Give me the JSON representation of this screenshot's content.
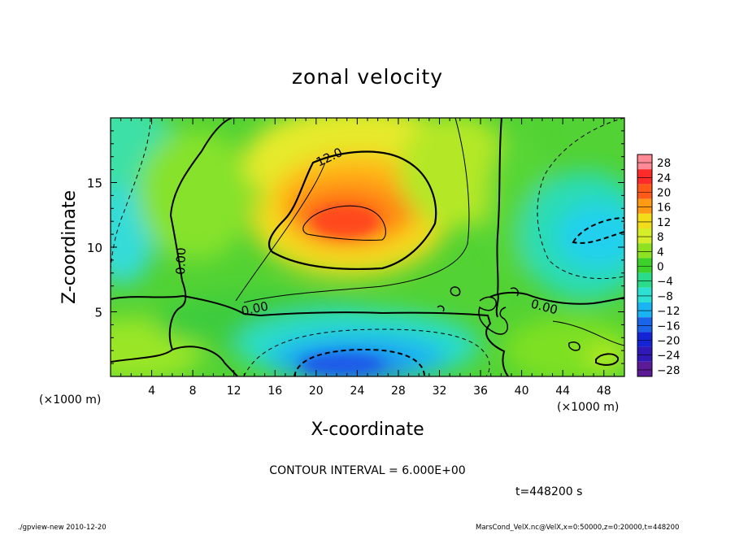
{
  "chart_data": {
    "type": "heatmap",
    "title": "zonal velocity",
    "xlabel": "X-coordinate",
    "ylabel": "Z-coordinate",
    "x_unit": "(×1000 m)",
    "y_unit": "(×1000 m)",
    "xlim": [
      0,
      50
    ],
    "ylim": [
      0,
      20
    ],
    "x_ticks": [
      4,
      8,
      12,
      16,
      20,
      24,
      28,
      32,
      36,
      40,
      44,
      48
    ],
    "y_ticks": [
      5,
      10,
      15
    ],
    "colorbar": {
      "levels": [
        28,
        24,
        20,
        16,
        12,
        8,
        4,
        0,
        -4,
        -8,
        -12,
        -16,
        -20,
        -24,
        -28
      ],
      "labels": [
        "28",
        "24",
        "20",
        "16",
        "12",
        "8",
        "4",
        "0",
        "−4",
        "−8",
        "−12",
        "−16",
        "−20",
        "−24",
        "−28"
      ],
      "colors": [
        "#ff8a96",
        "#ff2a2a",
        "#ff5a1a",
        "#ff9a14",
        "#f3dc1a",
        "#d6ee2a",
        "#8ee222",
        "#3cd22a",
        "#2adc8a",
        "#2ee0d2",
        "#1ab4f2",
        "#1a64ea",
        "#1424d4",
        "#3018b8",
        "#5c1a96"
      ]
    },
    "contour_labels": [
      {
        "text": "12.0",
        "x": 20.2,
        "z": 16.8
      },
      {
        "text": "0.00",
        "x": 6.6,
        "z": 9.0
      },
      {
        "text": "0.00",
        "x": 14.5,
        "z": 5.3
      },
      {
        "text": "0.00",
        "x": 42.5,
        "z": 5.3
      }
    ],
    "contour_interval": "CONTOUR INTERVAL = 6.000E+00",
    "time": "t=448200 s"
  },
  "footer": {
    "left": "./gpview-new  2010-12-20",
    "right": "MarsCond_VelX.nc@VelX,x=0:50000,z=0:20000,t=448200"
  }
}
